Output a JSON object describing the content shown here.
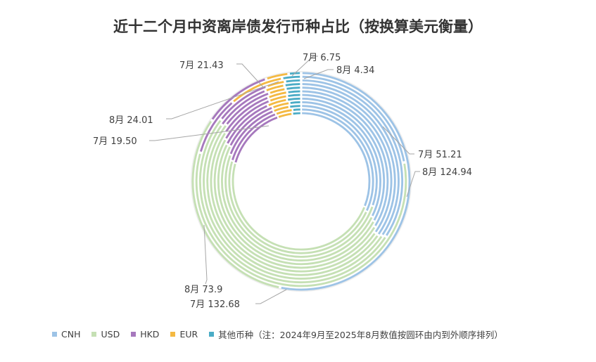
{
  "chart_data": {
    "type": "donut",
    "title": "近十二个月中资离岸债发行币种占比（按换算美元衡量）",
    "categories": [
      "CNH",
      "USD",
      "HKD",
      "EUR",
      "其他币种"
    ],
    "colors": {
      "CNH": "#9dc3e6",
      "USD": "#c5e0b4",
      "HKD": "#a678bd",
      "EUR": "#f4b942",
      "其他币种": "#4bacc6"
    },
    "rings": [
      {
        "period": "2024年9月",
        "values": [
          45.0,
          70.0,
          22.0,
          5.0,
          3.0
        ]
      },
      {
        "period": "2024年10月",
        "values": [
          50.0,
          75.0,
          23.0,
          6.0,
          3.0
        ]
      },
      {
        "period": "2024年11月",
        "values": [
          48.0,
          80.0,
          21.0,
          5.5,
          4.0
        ]
      },
      {
        "period": "2024年12月",
        "values": [
          55.0,
          85.0,
          20.0,
          6.0,
          4.0
        ]
      },
      {
        "period": "2025年1月",
        "values": [
          60.0,
          90.0,
          20.0,
          7.0,
          5.0
        ]
      },
      {
        "period": "2025年2月",
        "values": [
          65.0,
          95.0,
          21.0,
          6.5,
          5.0
        ]
      },
      {
        "period": "2025年3月",
        "values": [
          70.0,
          100.0,
          20.0,
          7.0,
          5.0
        ]
      },
      {
        "period": "2025年4月",
        "values": [
          72.0,
          105.0,
          19.0,
          6.0,
          5.5
        ]
      },
      {
        "period": "2025年5月",
        "values": [
          75.0,
          110.0,
          20.0,
          7.0,
          6.0
        ]
      },
      {
        "period": "2025年6月",
        "values": [
          80.0,
          120.0,
          21.0,
          7.0,
          6.0
        ]
      },
      {
        "period": "2025年7月",
        "values": [
          51.21,
          132.68,
          21.43,
          19.5,
          6.75
        ]
      },
      {
        "period": "2025年8月",
        "values": [
          124.94,
          73.9,
          24.01,
          8.0,
          4.34
        ]
      }
    ],
    "data_labels": [
      {
        "text": "7月 6.75"
      },
      {
        "text": "8月 4.34"
      },
      {
        "text": "7月 21.43"
      },
      {
        "text": "8月 24.01"
      },
      {
        "text": "7月 19.50"
      },
      {
        "text": "7月 51.21"
      },
      {
        "text": "8月 124.94"
      },
      {
        "text": "8月 73.9"
      },
      {
        "text": "7月 132.68"
      }
    ],
    "legend": {
      "position": "bottom",
      "items": [
        "CNH",
        "USD",
        "HKD",
        "EUR",
        "其他币种（注：2024年9月至2025年8月数值按圆环由内到外顺序排列）"
      ]
    }
  }
}
